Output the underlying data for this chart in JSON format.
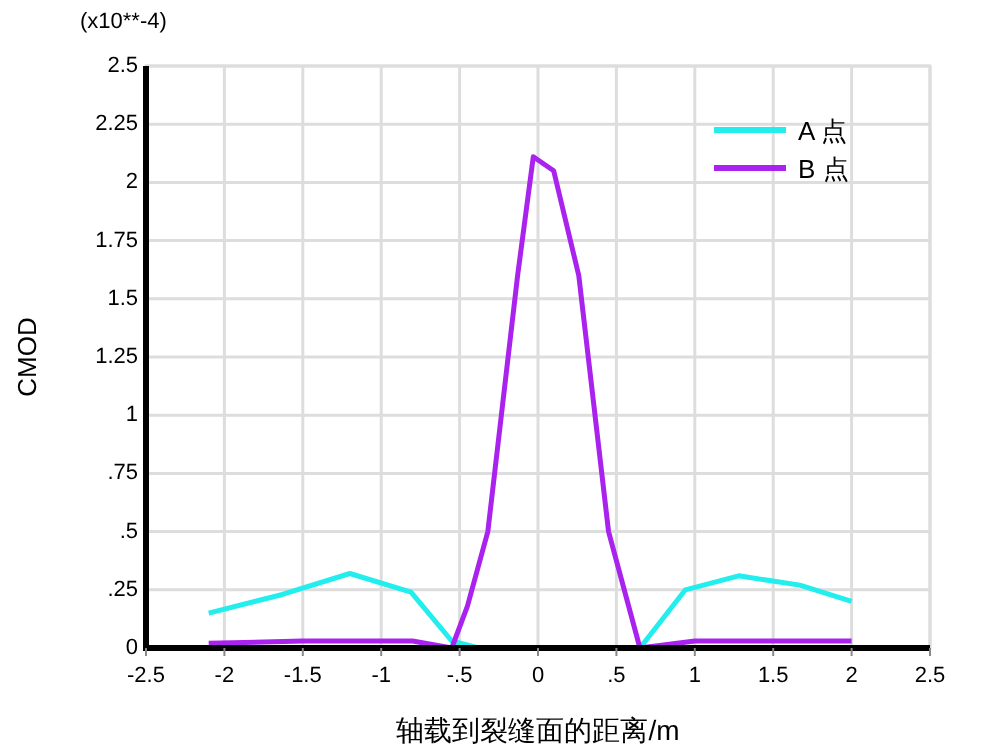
{
  "chart_data": {
    "type": "line",
    "xlabel": "轴载到裂缝面的距离/m",
    "ylabel": "CMOD",
    "annotations": [
      "(x10**-4)"
    ],
    "xlim": [
      -2.5,
      2.5
    ],
    "xticks": [
      -2.5,
      -2,
      -1.5,
      -1,
      {
        "value": -0.5,
        "label": "-.5"
      },
      0,
      {
        "value": 0.5,
        "label": ".5"
      },
      1,
      1.5,
      2,
      2.5
    ],
    "ylim": [
      0,
      2.5
    ],
    "yticks": [
      0,
      {
        "value": 0.25,
        "label": ".25"
      },
      {
        "value": 0.5,
        "label": ".5"
      },
      {
        "value": 0.75,
        "label": ".75"
      },
      1,
      1.25,
      1.5,
      1.75,
      2,
      2.25,
      2.5
    ],
    "grid": true,
    "legend": "top right",
    "line_style": "solid",
    "series": [
      {
        "name": "A 点",
        "color": "#22eeee",
        "x": [
          -2.1,
          -1.63,
          -1.2,
          -0.81,
          -0.55,
          -0.38,
          0.65,
          0.94,
          1.28,
          1.67,
          2.0
        ],
        "values": [
          0.15,
          0.23,
          0.32,
          0.24,
          0.03,
          0,
          0,
          0.25,
          0.31,
          0.27,
          0.2
        ]
      },
      {
        "name": "B 点",
        "color": "#aa22ee",
        "x": [
          -2.1,
          -1.5,
          -0.8,
          -0.55,
          -0.45,
          -0.32,
          -0.13,
          -0.03,
          0.1,
          0.26,
          0.45,
          0.65,
          1.0,
          2.0
        ],
        "values": [
          0.02,
          0.03,
          0.03,
          0,
          0.18,
          0.5,
          1.6,
          2.11,
          2.05,
          1.6,
          0.5,
          0,
          0.03,
          0.03
        ]
      }
    ]
  }
}
